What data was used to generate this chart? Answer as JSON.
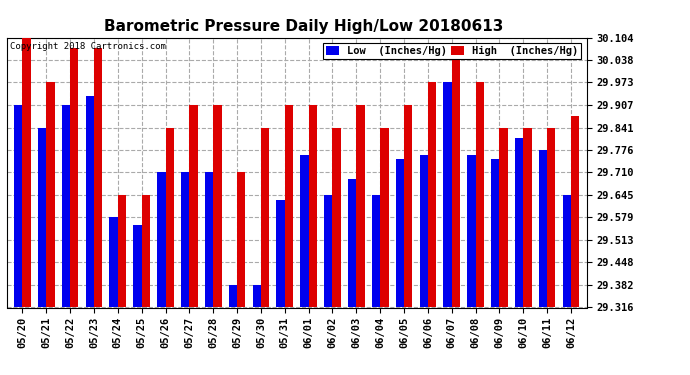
{
  "title": "Barometric Pressure Daily High/Low 20180613",
  "copyright": "Copyright 2018 Cartronics.com",
  "legend_low": "Low  (Inches/Hg)",
  "legend_high": "High  (Inches/Hg)",
  "low_color": "#0000ee",
  "high_color": "#dd0000",
  "ylim": [
    29.316,
    30.104
  ],
  "yticks": [
    29.316,
    29.382,
    29.448,
    29.513,
    29.579,
    29.645,
    29.71,
    29.776,
    29.841,
    29.907,
    29.973,
    30.038,
    30.104
  ],
  "dates": [
    "05/20",
    "05/21",
    "05/22",
    "05/23",
    "05/24",
    "05/25",
    "05/26",
    "05/27",
    "05/28",
    "05/29",
    "05/30",
    "05/31",
    "06/01",
    "06/02",
    "06/03",
    "06/04",
    "06/05",
    "06/06",
    "06/07",
    "06/08",
    "06/09",
    "06/10",
    "06/11",
    "06/12"
  ],
  "low_values": [
    29.907,
    29.841,
    29.907,
    29.934,
    29.579,
    29.556,
    29.71,
    29.71,
    29.71,
    29.382,
    29.382,
    29.63,
    29.762,
    29.645,
    29.69,
    29.645,
    29.748,
    29.762,
    29.973,
    29.762,
    29.748,
    29.81,
    29.776,
    29.645
  ],
  "high_values": [
    30.104,
    29.973,
    30.072,
    30.072,
    29.645,
    29.645,
    29.841,
    29.907,
    29.907,
    29.71,
    29.841,
    29.907,
    29.907,
    29.841,
    29.907,
    29.841,
    29.907,
    29.973,
    30.072,
    29.973,
    29.841,
    29.841,
    29.841,
    29.875
  ],
  "bg_color": "#ffffff",
  "plot_bg_color": "#ffffff",
  "grid_color": "#aaaaaa",
  "title_fontsize": 11,
  "tick_fontsize": 7.5,
  "bar_width": 0.35
}
